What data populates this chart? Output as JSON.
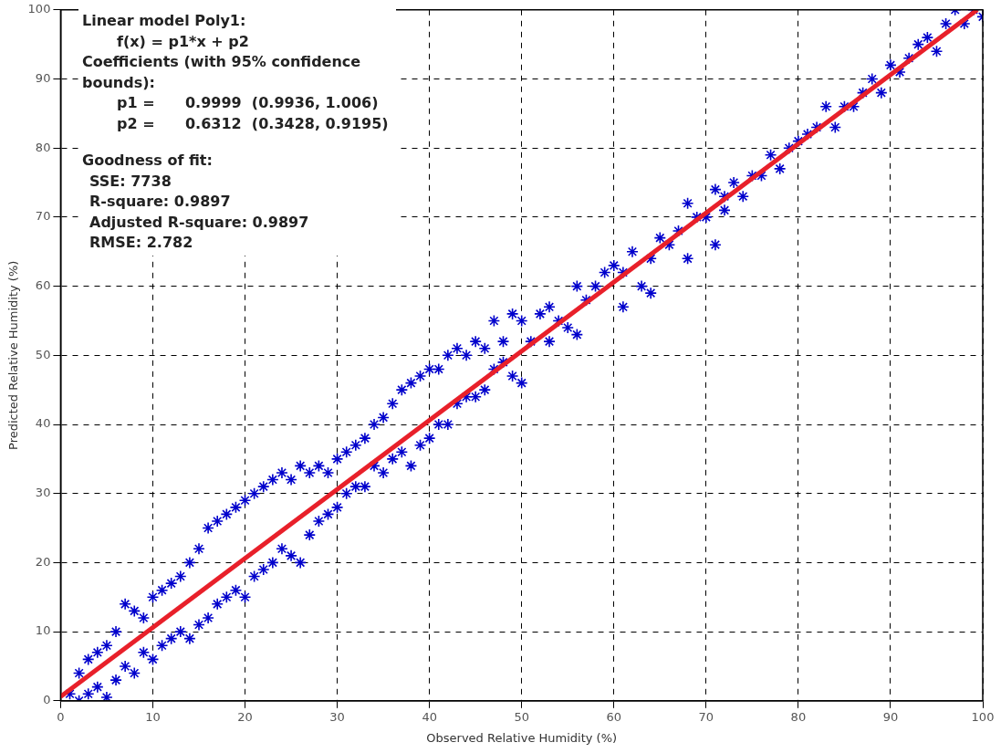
{
  "chart_data": {
    "type": "scatter",
    "xlabel": "Observed Relative Humidity (%)",
    "ylabel": "Predicted Relative Humidity (%)",
    "xlim": [
      0,
      100
    ],
    "ylim": [
      0,
      100
    ],
    "xticks": [
      0,
      10,
      20,
      30,
      40,
      50,
      60,
      70,
      80,
      90,
      100
    ],
    "yticks": [
      0,
      10,
      20,
      30,
      40,
      50,
      60,
      70,
      80,
      90,
      100
    ],
    "grid": true,
    "annotations": [
      "Linear model Poly1:",
      "f(x) = p1*x + p2",
      "Coefficients (with 95% confidence bounds):",
      "p1 =      0.9999  (0.9936, 1.006)",
      "p2 =      0.6312  (0.3428, 0.9195)",
      "Goodness of fit:",
      "SSE: 7738",
      "R-square: 0.9897",
      "Adjusted R-square: 0.9897",
      "RMSE: 2.782"
    ],
    "series": [
      {
        "type": "scatter",
        "marker": "cross",
        "color": "#0000cc",
        "x": [
          1,
          2,
          2,
          3,
          3,
          4,
          4,
          5,
          5,
          6,
          6,
          7,
          7,
          8,
          8,
          9,
          9,
          10,
          10,
          11,
          11,
          12,
          12,
          13,
          13,
          14,
          14,
          15,
          15,
          16,
          16,
          17,
          17,
          18,
          18,
          19,
          19,
          20,
          20,
          21,
          21,
          22,
          22,
          23,
          23,
          24,
          24,
          25,
          25,
          26,
          26,
          27,
          27,
          28,
          28,
          29,
          29,
          30,
          30,
          31,
          31,
          32,
          32,
          33,
          33,
          34,
          34,
          35,
          35,
          36,
          36,
          37,
          37,
          38,
          38,
          39,
          39,
          40,
          40,
          41,
          41,
          42,
          42,
          43,
          43,
          44,
          44,
          45,
          45,
          46,
          46,
          47,
          47,
          48,
          48,
          49,
          49,
          50,
          50,
          51,
          52,
          53,
          53,
          54,
          55,
          56,
          56,
          57,
          58,
          59,
          60,
          61,
          61,
          62,
          63,
          64,
          64,
          65,
          66,
          67,
          68,
          68,
          69,
          70,
          71,
          71,
          72,
          72,
          73,
          74,
          75,
          76,
          77,
          78,
          79,
          80,
          81,
          82,
          83,
          84,
          85,
          86,
          87,
          88,
          89,
          90,
          91,
          92,
          93,
          94,
          95,
          96,
          97,
          98,
          99,
          100
        ],
        "values": [
          1,
          4,
          0,
          6,
          1,
          7,
          2,
          8,
          0.5,
          10,
          3,
          14,
          5,
          13,
          4,
          12,
          7,
          15,
          6,
          16,
          8,
          17,
          9,
          18,
          10,
          20,
          9,
          22,
          11,
          25,
          12,
          26,
          14,
          27,
          15,
          28,
          16,
          29,
          15,
          30,
          18,
          31,
          19,
          32,
          20,
          33,
          22,
          32,
          21,
          34,
          20,
          33,
          24,
          34,
          26,
          33,
          27,
          35,
          28,
          36,
          30,
          37,
          31,
          38,
          31,
          40,
          34,
          41,
          33,
          43,
          35,
          45,
          36,
          46,
          34,
          47,
          37,
          48,
          38,
          48,
          40,
          50,
          40,
          51,
          43,
          50,
          44,
          52,
          44,
          51,
          45,
          55,
          48,
          52,
          49,
          56,
          47,
          55,
          46,
          52,
          56,
          57,
          52,
          55,
          54,
          60,
          53,
          58,
          60,
          62,
          63,
          62,
          57,
          65,
          60,
          64,
          59,
          67,
          66,
          68,
          72,
          64,
          70,
          70,
          74,
          66,
          73,
          71,
          75,
          73,
          76,
          76,
          79,
          77,
          80,
          81,
          82,
          83,
          86,
          83,
          86,
          86,
          88,
          90,
          88,
          92,
          91,
          93,
          95,
          96,
          94,
          98,
          100,
          98,
          100,
          99
        ]
      },
      {
        "type": "line",
        "marker": "none",
        "color": "#e8202a",
        "x": [
          0,
          99.4
        ],
        "values": [
          0.6,
          100
        ]
      }
    ]
  }
}
